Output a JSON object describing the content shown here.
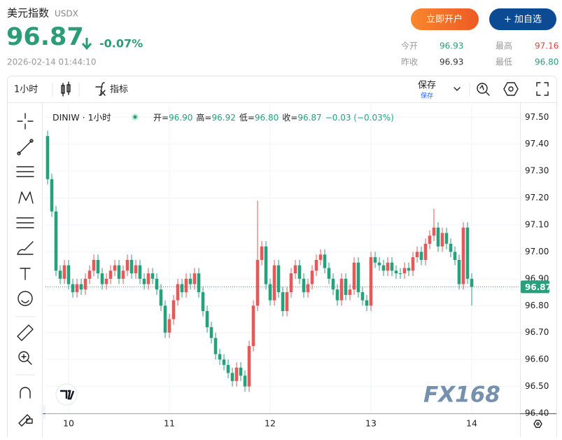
{
  "header": {
    "name": "美元指数",
    "code": "USDX",
    "price": "96.87",
    "change": "-0.07%",
    "time": "2026-02-14 01:44:10",
    "buttons": [
      "立即开户",
      "+ 加自选"
    ],
    "stats": [
      {
        "label": "今开",
        "value": "96.93"
      },
      {
        "label": "最高",
        "value": "97.16"
      },
      {
        "label": "昨收",
        "value": "96.93"
      },
      {
        "label": "最低",
        "value": "96.80"
      }
    ]
  },
  "toolbar": {
    "interval": "1小时",
    "indicators": "指标",
    "save": "保存",
    "save_sub": "保存"
  },
  "chart_data": {
    "type": "candlestick",
    "symbol": "DINIW · 1小时",
    "legend": [
      {
        "label": "开=",
        "value": "96.90"
      },
      {
        "label": "高=",
        "value": "96.92"
      },
      {
        "label": "低=",
        "value": "96.80"
      },
      {
        "label": "收=",
        "value": "96.87"
      },
      {
        "label": "",
        "value": "−0.03 (−0.03%)"
      }
    ],
    "up_color": "#e25a59",
    "down_color": "#26a17b",
    "open": [
      97.43,
      97.27,
      97.15,
      96.93,
      96.9,
      96.95,
      96.88,
      96.85,
      96.88,
      96.86,
      96.9,
      96.93,
      96.97,
      96.92,
      96.88,
      96.9,
      96.93,
      96.95,
      96.9,
      96.93,
      96.97,
      96.92,
      96.95,
      96.9,
      96.88,
      96.92,
      96.9,
      96.86,
      96.8,
      96.7,
      96.75,
      96.82,
      96.88,
      96.85,
      96.9,
      96.88,
      96.92,
      96.85,
      96.78,
      96.72,
      96.68,
      96.62,
      96.6,
      96.58,
      96.55,
      96.52,
      96.57,
      96.54,
      96.5,
      96.65,
      96.8,
      96.97,
      97.02,
      96.88,
      96.82,
      96.95,
      96.85,
      96.78,
      96.85,
      96.92,
      96.95,
      96.9,
      96.85,
      96.88,
      96.93,
      96.97,
      96.99,
      96.94,
      96.9,
      96.86,
      96.82,
      96.9,
      96.84,
      96.86,
      96.96,
      96.85,
      96.82,
      96.8,
      96.98,
      96.96,
      96.95,
      96.93,
      96.96,
      96.93,
      96.92,
      96.92,
      96.94,
      96.93,
      96.98,
      97.0,
      96.97,
      97.03,
      97.06,
      97.09,
      97.02,
      97.07,
      97.03,
      97.0,
      96.97,
      96.88,
      97.09,
      96.9
    ],
    "high": [
      97.45,
      97.29,
      97.17,
      96.95,
      96.97,
      96.97,
      96.9,
      96.9,
      96.9,
      96.92,
      96.95,
      96.99,
      96.99,
      96.94,
      96.92,
      96.95,
      96.97,
      96.97,
      96.95,
      96.99,
      96.99,
      96.97,
      96.97,
      96.92,
      96.94,
      96.94,
      96.92,
      96.88,
      96.82,
      96.77,
      96.84,
      96.9,
      96.9,
      96.92,
      96.92,
      96.94,
      96.94,
      96.87,
      96.8,
      96.74,
      96.7,
      96.64,
      96.62,
      96.6,
      96.57,
      96.59,
      96.59,
      96.56,
      96.67,
      96.82,
      97.19,
      97.04,
      97.04,
      96.9,
      96.97,
      96.97,
      96.87,
      96.87,
      96.94,
      96.97,
      96.97,
      96.92,
      96.9,
      96.95,
      96.99,
      97.01,
      97.01,
      96.96,
      96.92,
      96.88,
      96.92,
      96.92,
      96.88,
      96.98,
      96.98,
      96.87,
      96.84,
      97.0,
      97.0,
      96.98,
      96.97,
      96.98,
      96.98,
      96.95,
      96.94,
      96.96,
      96.96,
      97.0,
      97.02,
      97.02,
      97.05,
      97.08,
      97.16,
      97.11,
      97.09,
      97.09,
      97.05,
      97.02,
      96.99,
      97.11,
      97.11,
      96.92
    ],
    "low": [
      97.25,
      97.13,
      96.91,
      96.88,
      96.88,
      96.86,
      96.83,
      96.83,
      96.84,
      96.84,
      96.88,
      96.91,
      96.9,
      96.86,
      96.86,
      96.88,
      96.91,
      96.88,
      96.88,
      96.91,
      96.9,
      96.9,
      96.88,
      96.86,
      96.86,
      96.88,
      96.84,
      96.78,
      96.68,
      96.68,
      96.73,
      96.8,
      96.83,
      96.83,
      96.86,
      96.86,
      96.83,
      96.76,
      96.7,
      96.66,
      96.6,
      96.58,
      96.56,
      96.53,
      96.5,
      96.5,
      96.52,
      96.48,
      96.48,
      96.63,
      96.78,
      96.95,
      96.86,
      96.8,
      96.8,
      96.83,
      96.76,
      96.76,
      96.83,
      96.9,
      96.88,
      96.83,
      96.83,
      96.86,
      96.91,
      96.95,
      96.92,
      96.88,
      96.84,
      96.8,
      96.8,
      96.82,
      96.82,
      96.84,
      96.83,
      96.8,
      96.78,
      96.78,
      96.94,
      96.93,
      96.91,
      96.91,
      96.91,
      96.9,
      96.9,
      96.9,
      96.91,
      96.91,
      96.96,
      96.95,
      96.95,
      97.01,
      97.04,
      97.0,
      97.0,
      97.01,
      96.98,
      96.95,
      96.86,
      96.86,
      96.88,
      96.8
    ],
    "close": [
      97.27,
      97.15,
      96.93,
      96.9,
      96.95,
      96.88,
      96.85,
      96.88,
      96.86,
      96.9,
      96.93,
      96.97,
      96.92,
      96.88,
      96.9,
      96.93,
      96.95,
      96.9,
      96.93,
      96.97,
      96.92,
      96.95,
      96.9,
      96.88,
      96.92,
      96.9,
      96.86,
      96.8,
      96.7,
      96.75,
      96.82,
      96.88,
      96.85,
      96.9,
      96.88,
      96.92,
      96.85,
      96.78,
      96.72,
      96.68,
      96.62,
      96.6,
      96.58,
      96.55,
      96.52,
      96.57,
      96.54,
      96.5,
      96.65,
      96.8,
      96.97,
      97.02,
      96.88,
      96.82,
      96.95,
      96.85,
      96.78,
      96.85,
      96.92,
      96.95,
      96.9,
      96.85,
      96.88,
      96.93,
      96.97,
      96.99,
      96.94,
      96.9,
      96.86,
      96.82,
      96.9,
      96.84,
      96.86,
      96.96,
      96.85,
      96.82,
      96.8,
      96.98,
      96.96,
      96.95,
      96.93,
      96.96,
      96.93,
      96.92,
      96.92,
      96.94,
      96.93,
      96.98,
      97.0,
      96.97,
      97.03,
      97.06,
      97.09,
      97.02,
      97.07,
      97.03,
      97.0,
      96.97,
      96.88,
      97.09,
      96.9,
      96.87
    ],
    "last_price": 96.87,
    "last_color": "#26a17b",
    "xlim": [
      -0.5,
      112.5
    ],
    "xticks": [
      {
        "value": 5,
        "label": "10"
      },
      {
        "value": 29,
        "label": "11"
      },
      {
        "value": 53,
        "label": "12"
      },
      {
        "value": 77,
        "label": "13"
      },
      {
        "value": 101,
        "label": "14"
      }
    ],
    "ylim": [
      96.4,
      97.545
    ],
    "yticks": [
      {
        "value": 96.4,
        "label": "96.40"
      },
      {
        "value": 96.5,
        "label": "96.50"
      },
      {
        "value": 96.6,
        "label": "96.60"
      },
      {
        "value": 96.7,
        "label": "96.70"
      },
      {
        "value": 96.8,
        "label": "96.80"
      },
      {
        "value": 96.9,
        "label": "96.90"
      },
      {
        "value": 97.0,
        "label": "97.00"
      },
      {
        "value": 97.1,
        "label": "97.10"
      },
      {
        "value": 97.2,
        "label": "97.20"
      },
      {
        "value": 97.3,
        "label": "97.30"
      },
      {
        "value": 97.4,
        "label": "97.40"
      },
      {
        "value": 97.5,
        "label": "97.50"
      }
    ],
    "grid": true,
    "watermark": "FX168"
  }
}
